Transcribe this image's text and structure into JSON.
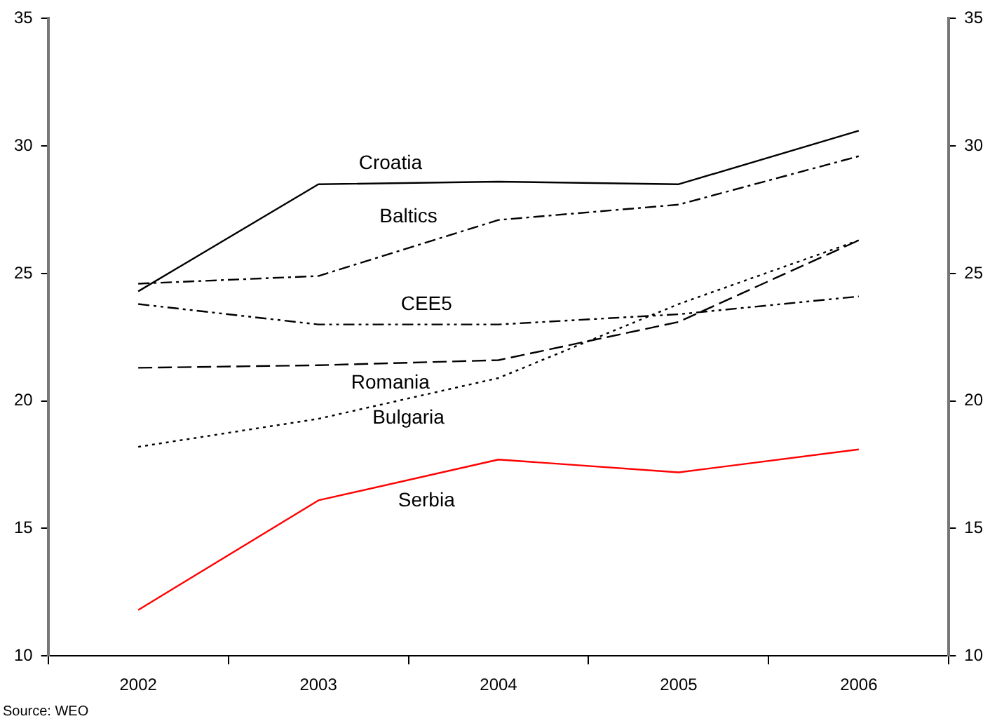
{
  "chart_data": {
    "type": "line",
    "categories": [
      "2002",
      "2003",
      "2004",
      "2005",
      "2006"
    ],
    "series": [
      {
        "name": "Croatia",
        "color": "#000000",
        "line_style": "solid",
        "values": [
          24.3,
          28.5,
          28.6,
          28.5,
          30.6
        ]
      },
      {
        "name": "Baltics",
        "color": "#000000",
        "line_style": "dashdot",
        "values": [
          24.6,
          24.9,
          27.1,
          27.7,
          29.6
        ]
      },
      {
        "name": "CEE5",
        "color": "#000000",
        "line_style": "dashdotdot",
        "values": [
          23.8,
          23.0,
          23.0,
          23.4,
          24.1
        ]
      },
      {
        "name": "Romania",
        "color": "#000000",
        "line_style": "dashed",
        "values": [
          21.3,
          21.4,
          21.6,
          23.1,
          26.3
        ]
      },
      {
        "name": "Bulgaria",
        "color": "#000000",
        "line_style": "dotted",
        "values": [
          18.2,
          19.3,
          20.9,
          23.8,
          26.3
        ]
      },
      {
        "name": "Serbia",
        "color": "#ff0000",
        "line_style": "solid",
        "values": [
          11.8,
          16.1,
          17.7,
          17.2,
          18.1
        ]
      }
    ],
    "ylim": [
      10,
      35
    ],
    "yticks": [
      10,
      15,
      20,
      25,
      30,
      35
    ],
    "y2lim": [
      10,
      35
    ],
    "y2ticks": [
      10,
      15,
      20,
      25,
      30,
      35
    ],
    "grid": false,
    "legend": false,
    "marker": "none",
    "annotations": [
      "Source: WEO"
    ]
  }
}
